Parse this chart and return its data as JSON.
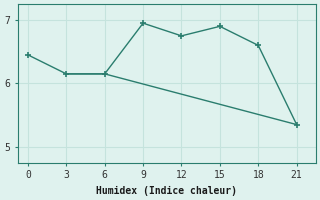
{
  "line1_x": [
    0,
    3,
    6,
    9,
    12,
    15,
    18,
    21
  ],
  "line1_y": [
    6.45,
    6.15,
    6.15,
    6.95,
    6.75,
    6.9,
    6.6,
    5.35
  ],
  "line2_x": [
    3,
    6,
    21
  ],
  "line2_y": [
    6.15,
    6.15,
    5.35
  ],
  "color": "#2a7d6e",
  "bg_color": "#dff2ee",
  "grid_color": "#c5e3dd",
  "xlabel": "Humidex (Indice chaleur)",
  "ylim": [
    4.75,
    7.25
  ],
  "xlim": [
    -0.8,
    22.5
  ],
  "yticks": [
    5,
    6,
    7
  ],
  "xticks": [
    0,
    3,
    6,
    9,
    12,
    15,
    18,
    21
  ]
}
